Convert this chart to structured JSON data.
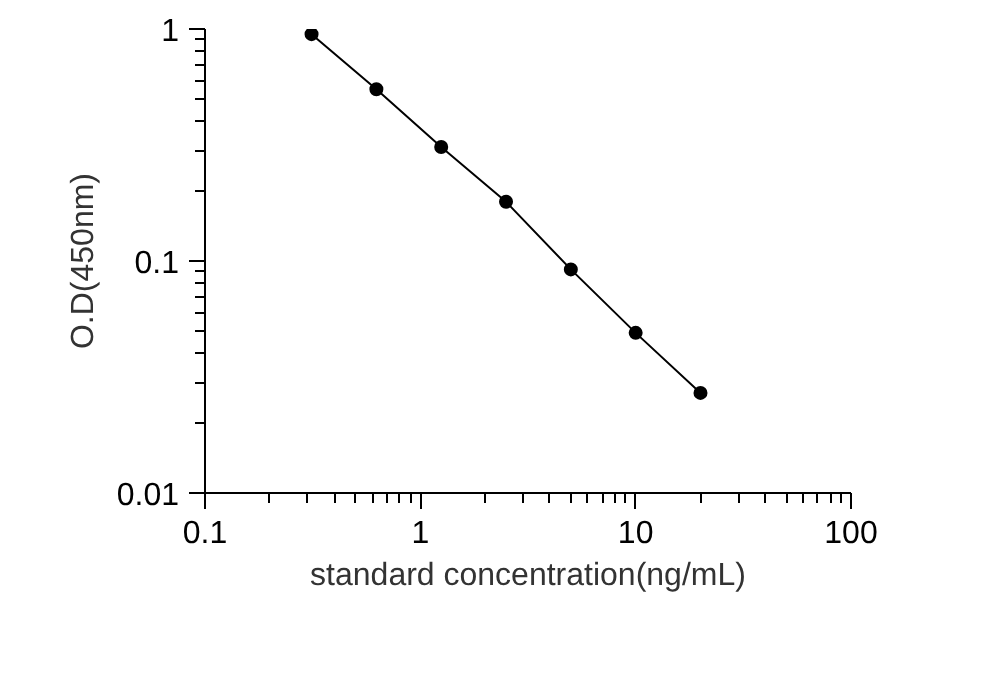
{
  "chart_data": {
    "type": "line",
    "xlabel": "standard concentration(ng/mL)",
    "ylabel": "O.D(450nm)",
    "x": [
      0.3125,
      0.625,
      1.25,
      2.5,
      5,
      10,
      20
    ],
    "series": [
      {
        "color": "#000000",
        "values": [
          0.95,
          0.55,
          0.31,
          0.18,
          0.092,
          0.049,
          0.027
        ]
      }
    ],
    "log": "xy",
    "xlim": [
      0.1,
      100
    ],
    "ylim": [
      0.01,
      1
    ],
    "xticks": [
      0.1,
      1,
      10,
      100
    ],
    "yticks": [
      0.01,
      0.1,
      1
    ],
    "marker": "circle",
    "line_style": "solid",
    "grid": false
  }
}
